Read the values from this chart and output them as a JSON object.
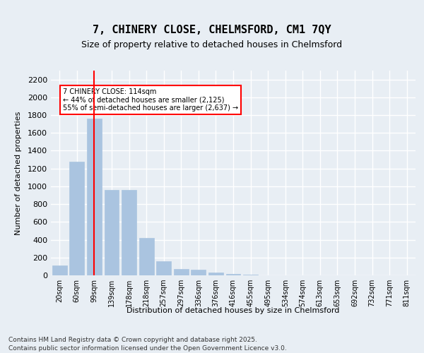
{
  "title1": "7, CHINERY CLOSE, CHELMSFORD, CM1 7QY",
  "title2": "Size of property relative to detached houses in Chelmsford",
  "xlabel": "Distribution of detached houses by size in Chelmsford",
  "ylabel": "Number of detached properties",
  "categories": [
    "20sqm",
    "60sqm",
    "99sqm",
    "139sqm",
    "178sqm",
    "218sqm",
    "257sqm",
    "297sqm",
    "336sqm",
    "376sqm",
    "416sqm",
    "455sqm",
    "495sqm",
    "534sqm",
    "574sqm",
    "613sqm",
    "653sqm",
    "692sqm",
    "732sqm",
    "771sqm",
    "811sqm"
  ],
  "values": [
    110,
    1280,
    1760,
    960,
    960,
    420,
    155,
    70,
    65,
    35,
    15,
    5,
    2,
    1,
    1,
    0,
    0,
    0,
    0,
    0,
    0
  ],
  "bar_color": "#aac4e0",
  "bar_edge_color": "#aac4e0",
  "vline_x": 2,
  "vline_color": "red",
  "annotation_text": "7 CHINERY CLOSE: 114sqm\n← 44% of detached houses are smaller (2,125)\n55% of semi-detached houses are larger (2,637) →",
  "annotation_box_color": "white",
  "annotation_box_edge": "red",
  "ylim": [
    0,
    2300
  ],
  "yticks": [
    0,
    200,
    400,
    600,
    800,
    1000,
    1200,
    1400,
    1600,
    1800,
    2000,
    2200
  ],
  "bg_color": "#e8eef4",
  "plot_bg_color": "#e8eef4",
  "grid_color": "white",
  "footer1": "Contains HM Land Registry data © Crown copyright and database right 2025.",
  "footer2": "Contains public sector information licensed under the Open Government Licence v3.0."
}
